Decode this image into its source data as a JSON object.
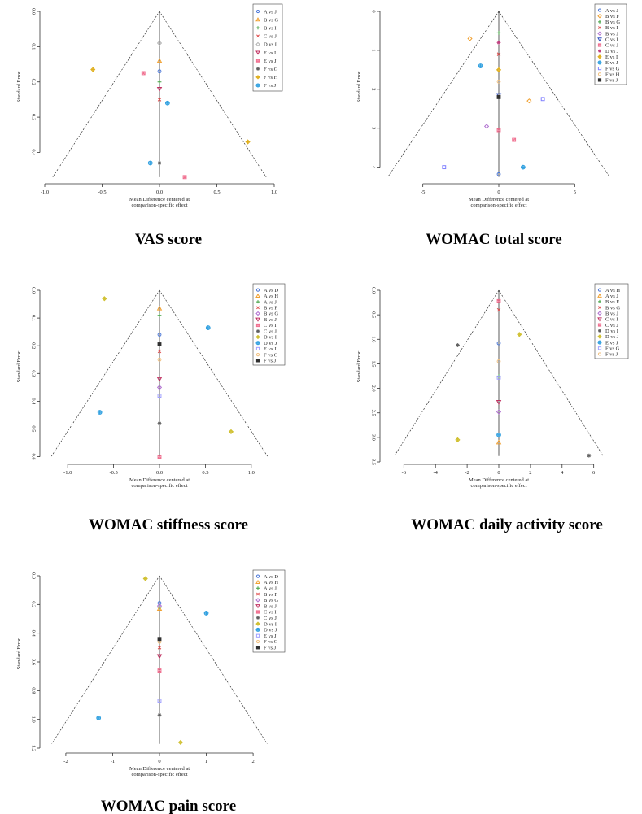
{
  "chart_data": [
    {
      "type": "scatter",
      "caption": "VAS score",
      "xlabel": [
        "Mean Difference centered at",
        "comparison-specific effect"
      ],
      "ylabel": "Standard Error",
      "xlim": [
        -1,
        1
      ],
      "ylim": [
        0,
        0.475
      ],
      "xticks": [
        "-1.0",
        "-0.5",
        "0.0",
        "0.5",
        "1.0"
      ],
      "xtick_values": [
        -1,
        -0.5,
        0,
        0.5,
        1
      ],
      "yticks": [
        "0.0",
        "0.1",
        "0.2",
        "0.3",
        "0.4"
      ],
      "ytick_values": [
        0,
        0.1,
        0.2,
        0.3,
        0.4
      ],
      "funnel_apex_se": 0,
      "funnel_base_se": 0.47,
      "funnel_base_halfwidth": 0.93,
      "series": [
        {
          "name": "A vs J",
          "marker": "circle",
          "color": "#4c78d8",
          "points": [
            [
              0.0,
              0.17
            ]
          ]
        },
        {
          "name": "B vs G",
          "marker": "triangle",
          "color": "#f0a030",
          "points": [
            [
              0.0,
              0.14
            ]
          ]
        },
        {
          "name": "B vs I",
          "marker": "plus",
          "color": "#40a040",
          "points": [
            [
              0.0,
              0.2
            ]
          ]
        },
        {
          "name": "C vs J",
          "marker": "x",
          "color": "#e05050",
          "points": [
            [
              0.0,
              0.25
            ]
          ]
        },
        {
          "name": "D vs I",
          "marker": "diamond",
          "color": "#b0b0b0",
          "points": [
            [
              0.0,
              0.09
            ]
          ]
        },
        {
          "name": "E vs I",
          "marker": "tri-down",
          "color": "#c03060",
          "points": [
            [
              0.0,
              0.22
            ]
          ]
        },
        {
          "name": "E vs J",
          "marker": "square-x",
          "color": "#f07090",
          "points": [
            [
              -0.14,
              0.175
            ],
            [
              0.22,
              0.47
            ]
          ]
        },
        {
          "name": "F vs G",
          "marker": "star",
          "color": "#606060",
          "points": [
            [
              0.0,
              0.43
            ]
          ]
        },
        {
          "name": "F vs H",
          "marker": "diamond-plus",
          "color": "#e0b020",
          "points": [
            [
              -0.58,
              0.165
            ],
            [
              0.77,
              0.37
            ]
          ]
        },
        {
          "name": "F vs J",
          "marker": "circle-plus",
          "color": "#30a0e0",
          "points": [
            [
              0.07,
              0.26
            ],
            [
              -0.08,
              0.43
            ]
          ]
        }
      ]
    },
    {
      "type": "scatter",
      "caption": "WOMAC total score",
      "xlabel": [
        "Mean Difference centered at",
        "comparison-specific effect"
      ],
      "ylabel": "Standard Error",
      "xlim": [
        -7.5,
        7.5
      ],
      "ylim": [
        0,
        4.3
      ],
      "xticks": [
        "-5",
        "0",
        "5"
      ],
      "xtick_values": [
        -5,
        0,
        5
      ],
      "yticks": [
        "0",
        "1",
        "2",
        "3",
        "4"
      ],
      "ytick_values": [
        0,
        1,
        2,
        3,
        4
      ],
      "funnel_apex_se": 0,
      "funnel_base_se": 4.25,
      "funnel_base_halfwidth": 7.3,
      "series": [
        {
          "name": "A vs J",
          "marker": "circle",
          "color": "#4c78d8",
          "points": [
            [
              0.0,
              4.18
            ]
          ]
        },
        {
          "name": "B vs F",
          "marker": "diamond-o",
          "color": "#f0a030",
          "points": [
            [
              -1.9,
              0.7
            ],
            [
              2.0,
              2.3
            ]
          ]
        },
        {
          "name": "B vs G",
          "marker": "plus",
          "color": "#40a040",
          "points": [
            [
              0.0,
              0.55
            ]
          ]
        },
        {
          "name": "B vs I",
          "marker": "x",
          "color": "#e05050",
          "points": [
            [
              0.0,
              1.1
            ]
          ]
        },
        {
          "name": "B vs J",
          "marker": "diamond",
          "color": "#b070d0",
          "points": [
            [
              -0.8,
              2.95
            ]
          ]
        },
        {
          "name": "C vs I",
          "marker": "tri-down",
          "color": "#3050c0",
          "points": [
            [
              0.0,
              2.15
            ]
          ]
        },
        {
          "name": "C vs J",
          "marker": "square-x",
          "color": "#f07090",
          "points": [
            [
              0.0,
              3.05
            ],
            [
              1.0,
              3.3
            ]
          ]
        },
        {
          "name": "D vs J",
          "marker": "star",
          "color": "#c04080",
          "points": [
            [
              0.0,
              0.8
            ]
          ]
        },
        {
          "name": "E vs I",
          "marker": "diamond-plus",
          "color": "#e0b020",
          "points": [
            [
              0.0,
              1.5
            ]
          ]
        },
        {
          "name": "E vs J",
          "marker": "circle-plus",
          "color": "#30a0e0",
          "points": [
            [
              -1.2,
              1.4
            ],
            [
              1.6,
              4.0
            ]
          ]
        },
        {
          "name": "F vs G",
          "marker": "square",
          "color": "#8080ff",
          "points": [
            [
              2.9,
              2.25
            ],
            [
              -3.6,
              4.0
            ]
          ]
        },
        {
          "name": "F vs H",
          "marker": "circle",
          "color": "#f0c080",
          "points": [
            [
              0.0,
              1.8
            ]
          ]
        },
        {
          "name": "F vs J",
          "marker": "square-filled",
          "color": "#303030",
          "points": [
            [
              0.0,
              2.2
            ]
          ]
        }
      ]
    },
    {
      "type": "scatter",
      "caption": "WOMAC stiffness score",
      "xlabel": [
        "Mean Difference centered at",
        "comparison-specific effect"
      ],
      "ylabel": "Standard Error",
      "xlim": [
        -1.25,
        1.25
      ],
      "ylim": [
        0,
        0.61
      ],
      "xticks": [
        "-1.0",
        "-0.5",
        "0.0",
        "0.5",
        "1.0"
      ],
      "xtick_values": [
        -1,
        -0.5,
        0,
        0.5,
        1
      ],
      "yticks": [
        "0.0",
        "0.1",
        "0.2",
        "0.3",
        "0.4",
        "0.5",
        "0.6"
      ],
      "ytick_values": [
        0,
        0.1,
        0.2,
        0.3,
        0.4,
        0.5,
        0.6
      ],
      "funnel_apex_se": 0,
      "funnel_base_se": 0.6,
      "funnel_base_halfwidth": 1.18,
      "series": [
        {
          "name": "A vs D",
          "marker": "circle",
          "color": "#4c78d8",
          "points": [
            [
              0.0,
              0.16
            ]
          ]
        },
        {
          "name": "A vs H",
          "marker": "triangle",
          "color": "#f0a030",
          "points": [
            [
              0.0,
              0.065
            ]
          ]
        },
        {
          "name": "A vs J",
          "marker": "plus",
          "color": "#40a040",
          "points": [
            [
              0.0,
              0.09
            ]
          ]
        },
        {
          "name": "B vs F",
          "marker": "x",
          "color": "#e05050",
          "points": [
            [
              0.0,
              0.22
            ]
          ]
        },
        {
          "name": "B vs G",
          "marker": "diamond",
          "color": "#b070d0",
          "points": [
            [
              0.0,
              0.35
            ]
          ]
        },
        {
          "name": "B vs J",
          "marker": "tri-down",
          "color": "#c03060",
          "points": [
            [
              0.0,
              0.32
            ]
          ]
        },
        {
          "name": "C vs I",
          "marker": "square-x",
          "color": "#f07090",
          "points": [
            [
              0.0,
              0.6
            ]
          ]
        },
        {
          "name": "C vs J",
          "marker": "star",
          "color": "#606060",
          "points": [
            [
              0.0,
              0.48
            ]
          ]
        },
        {
          "name": "D vs I",
          "marker": "diamond-plus",
          "color": "#d0c030",
          "points": [
            [
              -0.6,
              0.03
            ],
            [
              0.78,
              0.51
            ]
          ]
        },
        {
          "name": "D vs J",
          "marker": "circle-plus",
          "color": "#30a0e0",
          "points": [
            [
              0.53,
              0.135
            ],
            [
              -0.65,
              0.44
            ]
          ]
        },
        {
          "name": "E vs J",
          "marker": "square",
          "color": "#a0a0ff",
          "points": [
            [
              0.0,
              0.38
            ]
          ]
        },
        {
          "name": "F vs G",
          "marker": "circle",
          "color": "#f0c080",
          "points": [
            [
              0.0,
              0.25
            ]
          ]
        },
        {
          "name": "F vs J",
          "marker": "square-filled",
          "color": "#303030",
          "points": [
            [
              0.0,
              0.195
            ]
          ]
        }
      ]
    },
    {
      "type": "scatter",
      "caption": "WOMAC daily activity score",
      "xlabel": [
        "Mean Difference centered at",
        "comparison-specific effect"
      ],
      "ylabel": "Standard Error",
      "xlim": [
        -7.2,
        7.2
      ],
      "ylim": [
        0,
        3.45
      ],
      "xticks": [
        "-6",
        "-4",
        "-2",
        "0",
        "2",
        "4",
        "6"
      ],
      "xtick_values": [
        -6,
        -4,
        -2,
        0,
        2,
        4,
        6
      ],
      "yticks": [
        "0.0",
        "0.5",
        "1.0",
        "1.5",
        "2.0",
        "2.5",
        "3.0",
        "3.5"
      ],
      "ytick_values": [
        0,
        0.5,
        1,
        1.5,
        2,
        2.5,
        3,
        3.5
      ],
      "funnel_apex_se": 0,
      "funnel_base_se": 3.38,
      "funnel_base_halfwidth": 6.6,
      "series": [
        {
          "name": "A vs H",
          "marker": "circle",
          "color": "#4c78d8",
          "points": [
            [
              0.0,
              1.08
            ]
          ]
        },
        {
          "name": "A vs J",
          "marker": "triangle",
          "color": "#f0a030",
          "points": [
            [
              0.0,
              3.1
            ]
          ]
        },
        {
          "name": "B vs F",
          "marker": "plus",
          "color": "#40a040",
          "points": [
            [
              0.0,
              1.75
            ]
          ]
        },
        {
          "name": "B vs G",
          "marker": "x",
          "color": "#e05050",
          "points": [
            [
              0.0,
              0.4
            ]
          ]
        },
        {
          "name": "B vs J",
          "marker": "diamond",
          "color": "#b070d0",
          "points": [
            [
              0.0,
              2.48
            ]
          ]
        },
        {
          "name": "C vs I",
          "marker": "tri-down",
          "color": "#c03060",
          "points": [
            [
              0.0,
              2.28
            ]
          ]
        },
        {
          "name": "C vs J",
          "marker": "square-x",
          "color": "#f07090",
          "points": [
            [
              0.0,
              0.22
            ]
          ]
        },
        {
          "name": "D vs I",
          "marker": "star",
          "color": "#606060",
          "points": [
            [
              -2.6,
              1.12
            ],
            [
              5.7,
              3.37
            ]
          ]
        },
        {
          "name": "D vs J",
          "marker": "diamond-plus",
          "color": "#d0c030",
          "points": [
            [
              1.3,
              0.9
            ],
            [
              -2.6,
              3.05
            ]
          ]
        },
        {
          "name": "E vs J",
          "marker": "circle-plus",
          "color": "#30a0e0",
          "points": [
            [
              0.0,
              2.95
            ]
          ]
        },
        {
          "name": "F vs G",
          "marker": "square",
          "color": "#a0a0ff",
          "points": [
            [
              0.0,
              1.78
            ]
          ]
        },
        {
          "name": "F vs J",
          "marker": "circle",
          "color": "#f0c080",
          "points": [
            [
              0.0,
              1.45
            ]
          ]
        }
      ]
    },
    {
      "type": "scatter",
      "caption": "WOMAC pain score",
      "xlabel": [
        "Mean Difference centered at",
        "comparison-specific effect"
      ],
      "ylabel": "Standard Error",
      "xlim": [
        -2.45,
        2.45
      ],
      "ylim": [
        0,
        1.2
      ],
      "xticks": [
        "-2",
        "-1",
        "0",
        "1",
        "2"
      ],
      "xtick_values": [
        -2,
        -1,
        0,
        1,
        2
      ],
      "yticks": [
        "0.0",
        "0.2",
        "0.4",
        "0.6",
        "0.8",
        "1.0",
        "1.2"
      ],
      "ytick_values": [
        0,
        0.2,
        0.4,
        0.6,
        0.8,
        1.0,
        1.2
      ],
      "funnel_apex_se": 0,
      "funnel_base_se": 1.17,
      "funnel_base_halfwidth": 2.3,
      "series": [
        {
          "name": "A vs D",
          "marker": "circle",
          "color": "#4c78d8",
          "points": [
            [
              0.0,
              0.19
            ]
          ]
        },
        {
          "name": "A vs H",
          "marker": "triangle",
          "color": "#f0a030",
          "points": [
            [
              0.0,
              0.23
            ]
          ]
        },
        {
          "name": "A vs J",
          "marker": "plus",
          "color": "#40a040",
          "points": [
            [
              0.0,
              0.22
            ]
          ]
        },
        {
          "name": "B vs F",
          "marker": "x",
          "color": "#e05050",
          "points": [
            [
              0.0,
              0.5
            ]
          ]
        },
        {
          "name": "B vs G",
          "marker": "diamond",
          "color": "#b070d0",
          "points": [
            [
              0.0,
              0.21
            ]
          ]
        },
        {
          "name": "B vs J",
          "marker": "tri-down",
          "color": "#c03060",
          "points": [
            [
              0.0,
              0.56
            ]
          ]
        },
        {
          "name": "C vs I",
          "marker": "square-x",
          "color": "#f07090",
          "points": [
            [
              0.0,
              0.66
            ]
          ]
        },
        {
          "name": "C vs J",
          "marker": "star",
          "color": "#606060",
          "points": [
            [
              0.0,
              0.97
            ]
          ]
        },
        {
          "name": "D vs I",
          "marker": "diamond-plus",
          "color": "#d0c030",
          "points": [
            [
              -0.3,
              0.02
            ],
            [
              0.45,
              1.16
            ]
          ]
        },
        {
          "name": "D vs J",
          "marker": "circle-plus",
          "color": "#30a0e0",
          "points": [
            [
              1.0,
              0.26
            ],
            [
              -1.3,
              0.99
            ]
          ]
        },
        {
          "name": "E vs J",
          "marker": "square",
          "color": "#a0a0ff",
          "points": [
            [
              0.0,
              0.87
            ]
          ]
        },
        {
          "name": "F vs G",
          "marker": "circle",
          "color": "#f0c080",
          "points": [
            [
              0.0,
              0.46
            ]
          ]
        },
        {
          "name": "F vs J",
          "marker": "square-filled",
          "color": "#303030",
          "points": [
            [
              0.0,
              0.44
            ]
          ]
        }
      ]
    }
  ]
}
